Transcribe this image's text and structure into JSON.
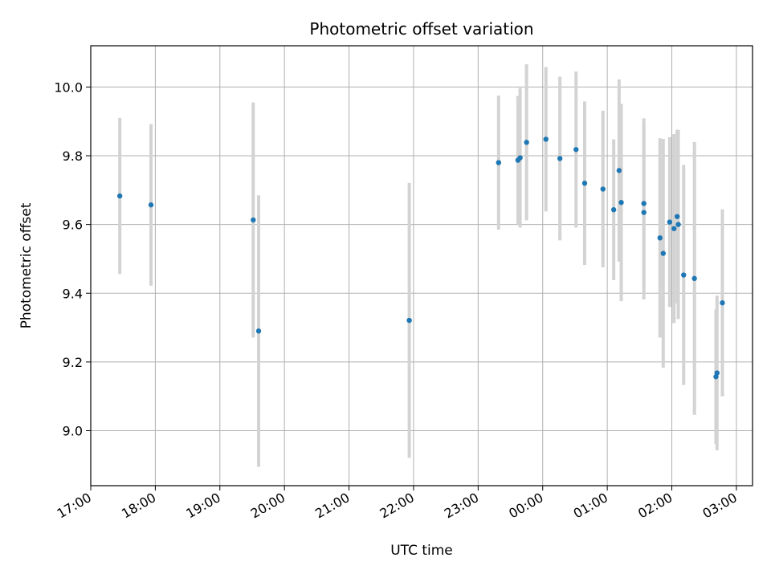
{
  "chart_data": {
    "type": "scatter",
    "title": "Photometric offset variation",
    "xlabel": "UTC time",
    "ylabel": "Photometric offset",
    "grid": true,
    "xlim": [
      "17:00",
      "03:15"
    ],
    "ylim": [
      8.84,
      10.12
    ],
    "x_ticks": [
      "17:00",
      "18:00",
      "19:00",
      "20:00",
      "21:00",
      "22:00",
      "23:00",
      "00:00",
      "01:00",
      "02:00",
      "03:00"
    ],
    "y_ticks": [
      "9.0",
      "9.2",
      "9.4",
      "9.6",
      "9.8",
      "10.0"
    ],
    "point_color": "#1f77b4",
    "errorbar_color": "#d3d3d3",
    "points": [
      {
        "x": "17:27",
        "y": 9.683,
        "err": 0.227
      },
      {
        "x": "17:56",
        "y": 9.657,
        "err": 0.235
      },
      {
        "x": "19:31",
        "y": 9.613,
        "err": 0.342
      },
      {
        "x": "19:36",
        "y": 9.29,
        "err": 0.395
      },
      {
        "x": "21:56",
        "y": 9.321,
        "err": 0.4
      },
      {
        "x": "23:19",
        "y": 9.78,
        "err": 0.195
      },
      {
        "x": "23:37",
        "y": 9.787,
        "err": 0.187
      },
      {
        "x": "23:39",
        "y": 9.794,
        "err": 0.203
      },
      {
        "x": "23:45",
        "y": 9.839,
        "err": 0.227
      },
      {
        "x": "00:03",
        "y": 9.848,
        "err": 0.21
      },
      {
        "x": "00:16",
        "y": 9.792,
        "err": 0.238
      },
      {
        "x": "00:31",
        "y": 9.818,
        "err": 0.227
      },
      {
        "x": "00:39",
        "y": 9.72,
        "err": 0.238
      },
      {
        "x": "00:56",
        "y": 9.703,
        "err": 0.228
      },
      {
        "x": "01:06",
        "y": 9.643,
        "err": 0.205
      },
      {
        "x": "01:11",
        "y": 9.757,
        "err": 0.265
      },
      {
        "x": "01:13",
        "y": 9.664,
        "err": 0.287
      },
      {
        "x": "01:34",
        "y": 9.661,
        "err": 0.248
      },
      {
        "x": "01:34",
        "y": 9.635,
        "err": 0.253
      },
      {
        "x": "01:49",
        "y": 9.561,
        "err": 0.29
      },
      {
        "x": "01:52",
        "y": 9.516,
        "err": 0.333
      },
      {
        "x": "01:58",
        "y": 9.607,
        "err": 0.247
      },
      {
        "x": "02:02",
        "y": 9.588,
        "err": 0.275
      },
      {
        "x": "02:05",
        "y": 9.623,
        "err": 0.253
      },
      {
        "x": "02:06",
        "y": 9.6,
        "err": 0.275
      },
      {
        "x": "02:11",
        "y": 9.453,
        "err": 0.32
      },
      {
        "x": "02:21",
        "y": 9.443,
        "err": 0.397
      },
      {
        "x": "02:41",
        "y": 9.157,
        "err": 0.196
      },
      {
        "x": "02:42",
        "y": 9.168,
        "err": 0.225
      },
      {
        "x": "02:47",
        "y": 9.372,
        "err": 0.272
      }
    ]
  }
}
